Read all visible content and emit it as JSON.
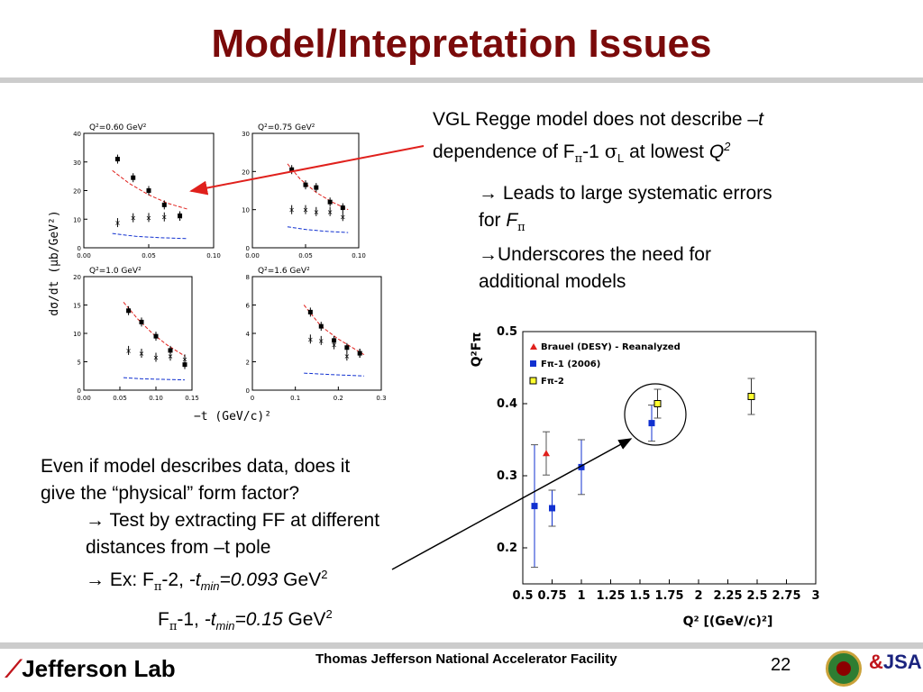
{
  "slide": {
    "title": "Model/Intepretation Issues",
    "page_number": "22",
    "footer": "Thomas Jefferson National Accelerator Facility",
    "logo_text": "Jefferson Lab",
    "logo_right_text": "JSA"
  },
  "text": {
    "note1_a": "VGL Regge model does not describe –",
    "note1_t": "t",
    "note1_b": "dependence of F",
    "note1_pi": "π",
    "note1_c": "-1 ",
    "note1_sigma": "σ",
    "note1_L": "L",
    "note1_d": "  at lowest ",
    "note1_Q": "Q",
    "note1_2": "2",
    "arrow": "→",
    "bullet1_a": " Leads to large systematic errors",
    "bullet1_b": "for ",
    "bullet1_F": "F",
    "bullet1_pi": "π",
    "bullet2_a": "Underscores the need for",
    "bullet2_b": "additional models",
    "para_a": "Even if model describes data, does it",
    "para_b": "give the “physical” form factor?",
    "sub1_a": " Test by extracting FF at different",
    "sub1_b": "distances from –t pole",
    "sub2_a": " Ex: F",
    "sub2_pi": "π",
    "sub2_b": "-2, ",
    "sub2_t": "-t",
    "sub2_min": "min",
    "sub2_val": "=0.093",
    "sub2_unit": " GeV",
    "sub2_exp": "2",
    "sub3_F": "F",
    "sub3_pi": "π",
    "sub3_b": "-1, ",
    "sub3_t": "-t",
    "sub3_min": "min",
    "sub3_val": "=0.15",
    "sub3_unit": " GeV",
    "sub3_exp": "2"
  },
  "colors": {
    "title": "#7a0a0a",
    "arrow_red": "#e0201c",
    "data_blue": "#1030d0",
    "data_yellow": "#ffff30"
  },
  "chart_data": [
    {
      "type": "scatter",
      "title": "Q²=0.60 GeV²",
      "ylim": [
        0,
        40
      ],
      "xlim": [
        0,
        0.1
      ],
      "xticks": [
        "0.00",
        "0.05",
        "0.10"
      ],
      "yticks": [
        "0",
        "10",
        "20",
        "30",
        "40"
      ],
      "series": [
        {
          "x": [
            0.026,
            0.038,
            0.05,
            0.062,
            0.074
          ],
          "y": [
            31,
            24.5,
            20,
            15,
            11.2
          ]
        },
        {
          "x": [
            0.026,
            0.038,
            0.05,
            0.062,
            0.074
          ],
          "y": [
            8.8,
            10.5,
            10.6,
            10.8,
            11
          ]
        }
      ],
      "curves": [
        {
          "x": [
            0.022,
            0.035,
            0.05,
            0.065,
            0.08
          ],
          "y": [
            27,
            22.5,
            18.5,
            15.5,
            13.5
          ]
        },
        {
          "x": [
            0.022,
            0.04,
            0.06,
            0.08
          ],
          "y": [
            5,
            4,
            3.5,
            3.2
          ]
        }
      ]
    },
    {
      "type": "scatter",
      "title": "Q²=0.75 GeV²",
      "ylim": [
        0,
        30
      ],
      "xlim": [
        0,
        0.1
      ],
      "xticks": [
        "0.00",
        "0.05",
        "0.10"
      ],
      "yticks": [
        "0",
        "10",
        "20",
        "30"
      ],
      "series": [
        {
          "x": [
            0.037,
            0.05,
            0.06,
            0.073,
            0.085
          ],
          "y": [
            20.5,
            16.5,
            15.8,
            12,
            10.5
          ]
        },
        {
          "x": [
            0.037,
            0.05,
            0.06,
            0.073,
            0.085
          ],
          "y": [
            10,
            10,
            9.5,
            9.5,
            8.2
          ]
        }
      ],
      "curves": [
        {
          "x": [
            0.033,
            0.045,
            0.06,
            0.075,
            0.09
          ],
          "y": [
            22,
            18,
            14.5,
            12,
            10
          ]
        },
        {
          "x": [
            0.033,
            0.05,
            0.07,
            0.09
          ],
          "y": [
            5.5,
            4.8,
            4.3,
            4
          ]
        }
      ]
    },
    {
      "type": "scatter",
      "title": "Q²=1.0 GeV²",
      "ylim": [
        0,
        20
      ],
      "xlim": [
        0,
        0.15
      ],
      "xticks": [
        "0.00",
        "0.05",
        "0.10",
        "0.15"
      ],
      "yticks": [
        "0",
        "5",
        "10",
        "15",
        "20"
      ],
      "series": [
        {
          "x": [
            0.062,
            0.08,
            0.1,
            0.12,
            0.14
          ],
          "y": [
            14,
            12,
            9.5,
            7,
            4.5
          ]
        },
        {
          "x": [
            0.062,
            0.08,
            0.1,
            0.12,
            0.14
          ],
          "y": [
            7,
            6.5,
            5.8,
            6,
            5.5
          ]
        }
      ],
      "curves": [
        {
          "x": [
            0.055,
            0.075,
            0.095,
            0.115,
            0.14
          ],
          "y": [
            15.5,
            12.5,
            10,
            8,
            6
          ]
        },
        {
          "x": [
            0.055,
            0.08,
            0.11,
            0.14
          ],
          "y": [
            2.2,
            2,
            1.9,
            1.8
          ]
        }
      ]
    },
    {
      "type": "scatter",
      "title": "Q²=1.6 GeV²",
      "ylim": [
        0,
        8
      ],
      "xlim": [
        0,
        0.3
      ],
      "xticks": [
        "0",
        "0.1",
        "0.2",
        "0.3"
      ],
      "yticks": [
        "0",
        "2",
        "4",
        "6",
        "8"
      ],
      "series": [
        {
          "x": [
            0.135,
            0.16,
            0.19,
            0.22,
            0.25
          ],
          "y": [
            5.5,
            4.5,
            3.5,
            3,
            2.6
          ]
        },
        {
          "x": [
            0.135,
            0.16,
            0.19,
            0.22,
            0.25
          ],
          "y": [
            3.6,
            3.5,
            3.2,
            2.4,
            2.6
          ]
        }
      ],
      "curves": [
        {
          "x": [
            0.12,
            0.16,
            0.2,
            0.26
          ],
          "y": [
            6,
            4.5,
            3.6,
            2.5
          ]
        },
        {
          "x": [
            0.12,
            0.18,
            0.26
          ],
          "y": [
            1.2,
            1.1,
            1.0
          ]
        }
      ]
    },
    {
      "type": "scatter",
      "title": "",
      "xlabel": "Q² [(GeV/c)²]",
      "ylabel": "Q²Fπ",
      "xlim": [
        0.5,
        3
      ],
      "ylim": [
        0.15,
        0.5
      ],
      "xticks": [
        "0.5",
        "0.75",
        "1",
        "1.25",
        "1.5",
        "1.75",
        "2",
        "2.25",
        "2.5",
        "2.75",
        "3"
      ],
      "yticks": [
        "0.2",
        "0.3",
        "0.4",
        "0.5"
      ],
      "legend": [
        "Brauel (DESY) - Reanalyzed",
        "Fπ-1 (2006)",
        "Fπ-2"
      ],
      "series": [
        {
          "name": "Brauel (DESY) - Reanalyzed",
          "x": [
            0.7
          ],
          "y": [
            0.331
          ],
          "err": [
            0.03
          ]
        },
        {
          "name": "Fπ-1 (2006)",
          "x": [
            0.6,
            0.75,
            1.0,
            1.6
          ],
          "y": [
            0.258,
            0.255,
            0.312,
            0.373
          ],
          "err": [
            0.085,
            0.025,
            0.038,
            0.025
          ]
        },
        {
          "name": "Fπ-2",
          "x": [
            1.65,
            2.45
          ],
          "y": [
            0.4,
            0.41
          ],
          "err": [
            0.02,
            0.025
          ]
        }
      ]
    }
  ]
}
